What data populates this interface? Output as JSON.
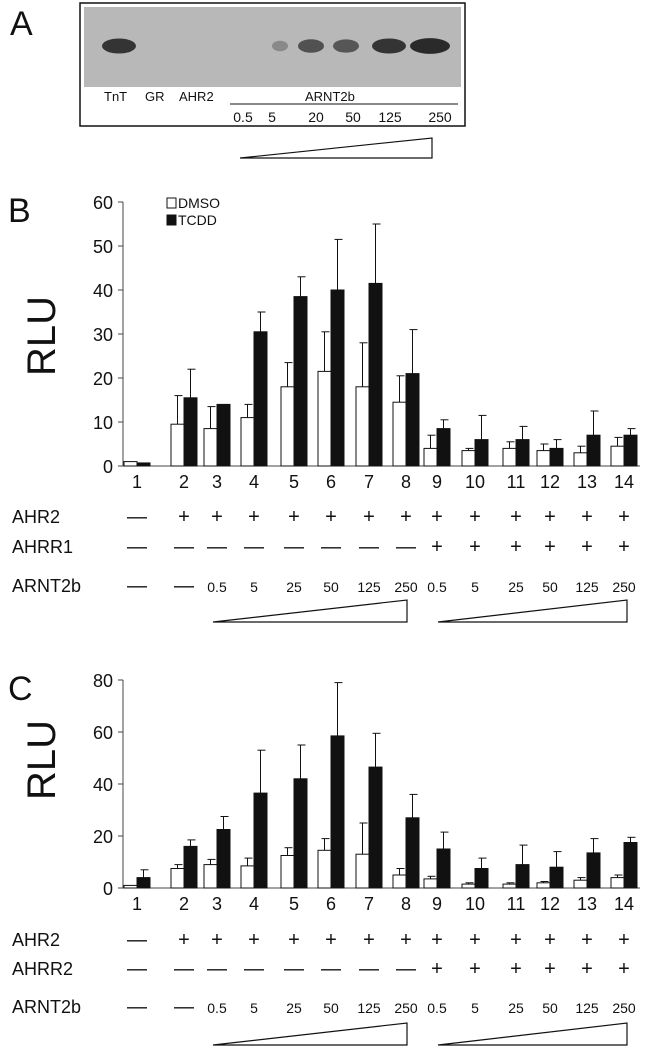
{
  "panelA": {
    "letter": "A",
    "lanes": [
      "TnT",
      "GR",
      "AHR2"
    ],
    "group_label": "ARNT2b",
    "amounts": [
      "0.5",
      "5",
      "20",
      "50",
      "125",
      "250"
    ],
    "band_intensity": [
      0.85,
      0,
      0,
      0.1,
      0.6,
      0.55,
      0.85,
      0.95
    ],
    "band_colors": {
      "background": "#b8b8b8",
      "band": "#2a2a2a"
    }
  },
  "chart_data": [
    {
      "type": "bar",
      "panel": "B",
      "title": "",
      "xlabel": "",
      "ylabel": "RLU",
      "ylim": [
        0,
        60
      ],
      "yticks": [
        0,
        10,
        20,
        30,
        40,
        50,
        60
      ],
      "categories": [
        "1",
        "2",
        "3",
        "4",
        "5",
        "6",
        "7",
        "8",
        "9",
        "10",
        "11",
        "12",
        "13",
        "14"
      ],
      "legend_position": "top-left",
      "series": [
        {
          "name": "DMSO",
          "fill": "#ffffff",
          "values": [
            1,
            9.5,
            8.5,
            11,
            18,
            21.5,
            18,
            14.5,
            4,
            3.5,
            4,
            3.5,
            3,
            4.5
          ],
          "errors": [
            0,
            6.5,
            5,
            3,
            5.5,
            9,
            10,
            6,
            3,
            0.5,
            1.5,
            1.5,
            1.5,
            2
          ]
        },
        {
          "name": "TCDD",
          "fill": "#111111",
          "values": [
            0.7,
            15.5,
            14,
            30.5,
            38.5,
            40,
            41.5,
            21,
            8.5,
            6,
            6,
            4,
            7,
            7
          ],
          "errors": [
            0,
            6.5,
            0,
            4.5,
            4.5,
            11.5,
            13.5,
            10,
            2,
            5.5,
            3,
            2,
            5.5,
            1.5
          ]
        }
      ],
      "conditions": [
        {
          "label": "AHR2",
          "values": [
            "—",
            "+",
            "+",
            "+",
            "+",
            "+",
            "+",
            "+",
            "+",
            "+",
            "+",
            "+",
            "+",
            "+"
          ]
        },
        {
          "label": "AHRR1",
          "values": [
            "—",
            "—",
            "—",
            "—",
            "—",
            "—",
            "—",
            "—",
            "+",
            "+",
            "+",
            "+",
            "+",
            "+"
          ]
        },
        {
          "label": "ARNT2b",
          "values": [
            "—",
            "—",
            "0.5",
            "5",
            "25",
            "50",
            "125",
            "250",
            "0.5",
            "5",
            "25",
            "50",
            "125",
            "250"
          ]
        }
      ]
    },
    {
      "type": "bar",
      "panel": "C",
      "title": "",
      "xlabel": "",
      "ylabel": "RLU",
      "ylim": [
        0,
        80
      ],
      "yticks": [
        0,
        20,
        40,
        60,
        80
      ],
      "categories": [
        "1",
        "2",
        "3",
        "4",
        "5",
        "6",
        "7",
        "8",
        "9",
        "10",
        "11",
        "12",
        "13",
        "14"
      ],
      "legend_position": "none",
      "series": [
        {
          "name": "",
          "fill": "#ffffff",
          "values": [
            1,
            7.5,
            9,
            8.5,
            12.5,
            14.5,
            13,
            5,
            3.5,
            1.5,
            1.5,
            2,
            3,
            4
          ],
          "errors": [
            0,
            1.5,
            2,
            3,
            3,
            4.5,
            12,
            2.5,
            1,
            0.5,
            0.5,
            0.5,
            1,
            1
          ]
        },
        {
          "name": "",
          "fill": "#111111",
          "values": [
            4,
            16,
            22.5,
            36.5,
            42,
            58.5,
            46.5,
            27,
            15,
            7.5,
            9,
            8,
            13.5,
            17.5
          ],
          "errors": [
            3,
            2.5,
            5,
            16.5,
            13,
            20.5,
            13,
            9,
            6.5,
            4,
            7.5,
            6,
            5.5,
            2
          ]
        }
      ],
      "conditions": [
        {
          "label": "AHR2",
          "values": [
            "—",
            "+",
            "+",
            "+",
            "+",
            "+",
            "+",
            "+",
            "+",
            "+",
            "+",
            "+",
            "+",
            "+"
          ]
        },
        {
          "label": "AHRR2",
          "values": [
            "—",
            "—",
            "—",
            "—",
            "—",
            "—",
            "—",
            "—",
            "+",
            "+",
            "+",
            "+",
            "+",
            "+"
          ]
        },
        {
          "label": "ARNT2b",
          "values": [
            "—",
            "—",
            "0.5",
            "5",
            "25",
            "50",
            "125",
            "250",
            "0.5",
            "5",
            "25",
            "50",
            "125",
            "250"
          ]
        }
      ]
    }
  ]
}
